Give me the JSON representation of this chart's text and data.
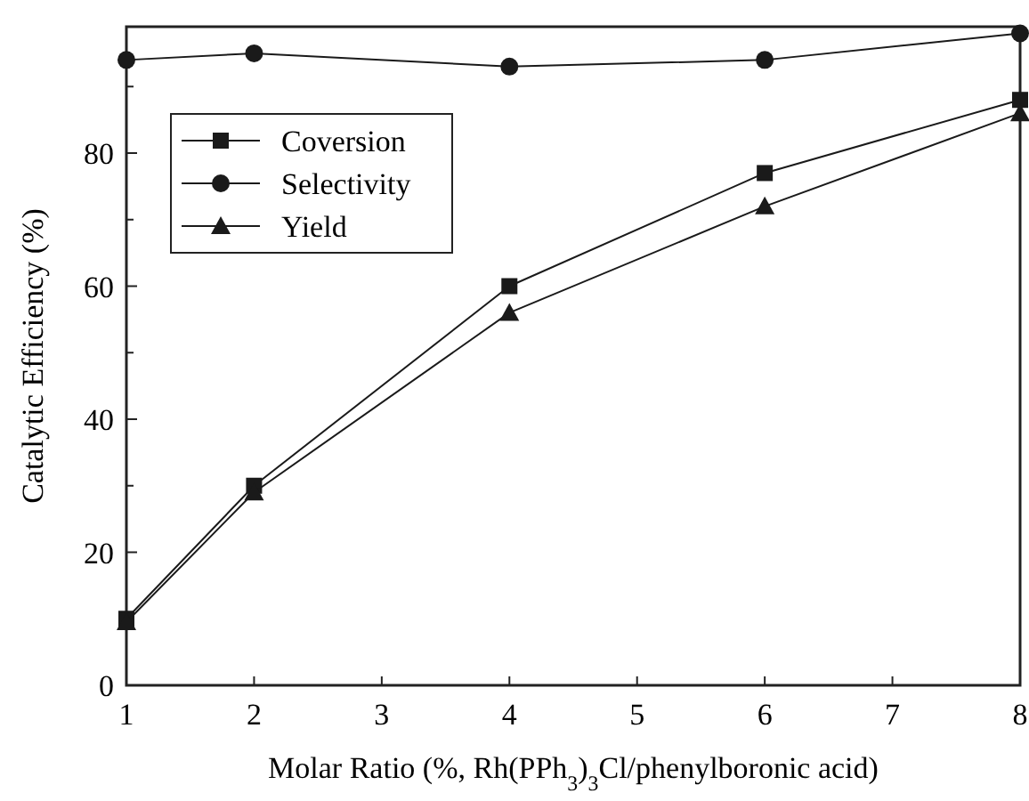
{
  "chart_data": {
    "type": "line",
    "xlabel": "Molar Ratio (%, Rh(PPh$_{3}$)$_{3}$Cl/phenylboronic acid)",
    "ylabel": "Catalytic Efficiency (%)",
    "x": [
      1,
      2,
      4,
      6,
      8
    ],
    "xlim": [
      1,
      8
    ],
    "xticks": [
      1,
      2,
      3,
      4,
      5,
      6,
      7,
      8
    ],
    "ylim": [
      0,
      99
    ],
    "yticks": [
      0,
      {
        "value": 10,
        "label": null
      },
      20,
      {
        "value": 30,
        "label": null
      },
      40,
      {
        "value": 50,
        "label": null
      },
      60,
      {
        "value": 70,
        "label": null
      },
      80,
      {
        "value": 90,
        "label": null
      }
    ],
    "legend": "top left",
    "grid": false,
    "line_style": "solid",
    "series": [
      {
        "name": "Coversion",
        "color": "#1a1a1a",
        "marker": "square",
        "values": [
          10,
          30,
          60,
          77,
          88
        ]
      },
      {
        "name": "Selectivity",
        "color": "#1a1a1a",
        "marker": "circle",
        "values": [
          94,
          95,
          93,
          94,
          98
        ]
      },
      {
        "name": "Yield",
        "color": "#1a1a1a",
        "marker": "triangle",
        "values": [
          9.5,
          29,
          56,
          72,
          86
        ]
      }
    ]
  }
}
